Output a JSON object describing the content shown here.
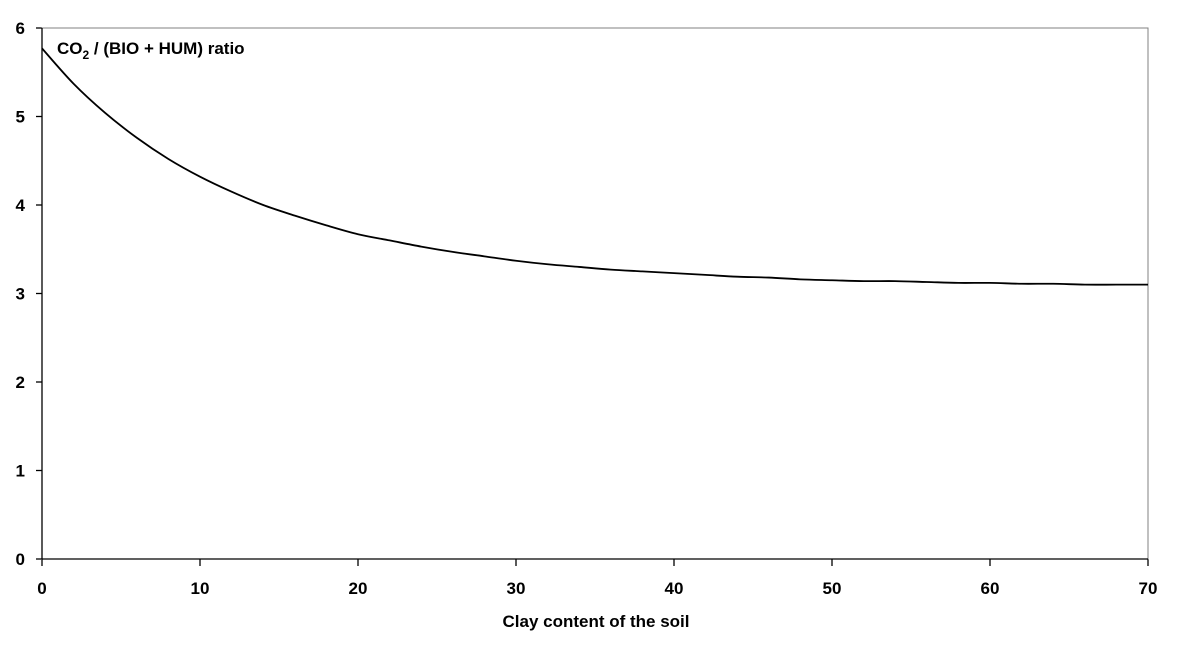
{
  "chart_data": {
    "type": "line",
    "title": "",
    "annotation": {
      "pre": "CO",
      "sub": "2",
      "post": " / (BIO + HUM) ratio"
    },
    "xlabel": "Clay content of the soil",
    "ylabel": "",
    "xlim": [
      0,
      70
    ],
    "ylim": [
      0,
      6
    ],
    "xticks": [
      0,
      10,
      20,
      30,
      40,
      50,
      60,
      70
    ],
    "yticks": [
      0,
      1,
      2,
      3,
      4,
      5,
      6
    ],
    "grid": false,
    "legend": "none",
    "line_color": "#000000",
    "series": [
      {
        "x": [
          0,
          2,
          4,
          6,
          8,
          10,
          12,
          14,
          16,
          18,
          20,
          22,
          24,
          26,
          28,
          30,
          32,
          34,
          36,
          38,
          40,
          42,
          44,
          46,
          48,
          50,
          52,
          54,
          56,
          58,
          60,
          62,
          64,
          66,
          68,
          70
        ],
        "values": [
          5.77,
          5.37,
          5.04,
          4.76,
          4.52,
          4.32,
          4.15,
          4.0,
          3.88,
          3.77,
          3.67,
          3.6,
          3.53,
          3.47,
          3.42,
          3.37,
          3.33,
          3.3,
          3.27,
          3.25,
          3.23,
          3.21,
          3.19,
          3.18,
          3.16,
          3.15,
          3.14,
          3.14,
          3.13,
          3.12,
          3.12,
          3.11,
          3.11,
          3.1,
          3.1,
          3.1
        ]
      }
    ]
  }
}
